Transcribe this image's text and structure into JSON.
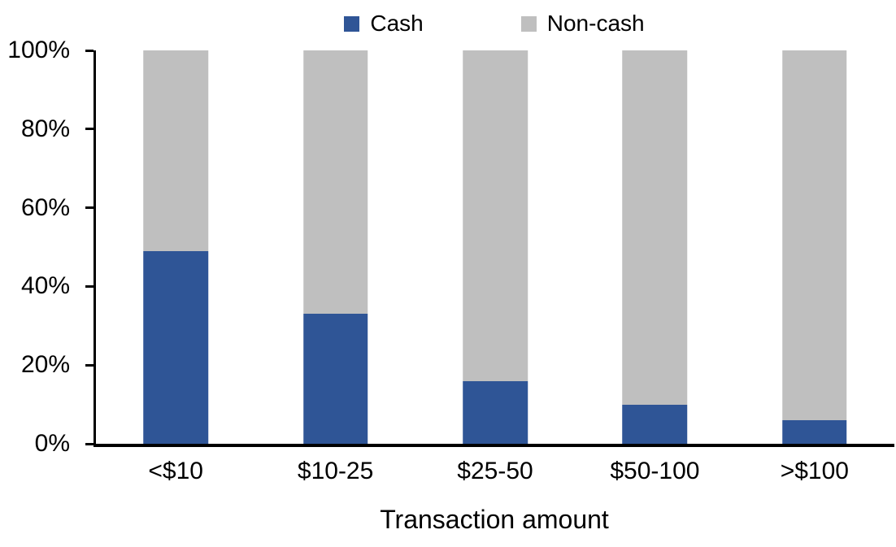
{
  "chart_data": {
    "type": "bar",
    "stacked": true,
    "percent_stacked": true,
    "title": "",
    "xlabel": "Transaction amount",
    "ylabel": "",
    "categories": [
      "<$10",
      "$10-25",
      "$25-50",
      "$50-100",
      ">$100"
    ],
    "series": [
      {
        "name": "Cash",
        "color": "#2F5596",
        "values": [
          49,
          33,
          16,
          10,
          6
        ]
      },
      {
        "name": "Non-cash",
        "color": "#BFBFBF",
        "values": [
          51,
          67,
          84,
          90,
          94
        ]
      }
    ],
    "ylim": [
      0,
      100
    ],
    "yticks": [
      {
        "label": "0%",
        "value": 0
      },
      {
        "label": "20%",
        "value": 20
      },
      {
        "label": "40%",
        "value": 40
      },
      {
        "label": "60%",
        "value": 60
      },
      {
        "label": "80%",
        "value": 80
      },
      {
        "label": "100%",
        "value": 100
      }
    ],
    "legend_position": "top",
    "grid": false
  },
  "colors": {
    "axis": "#000000",
    "background": "#FFFFFF",
    "text": "#000000"
  }
}
